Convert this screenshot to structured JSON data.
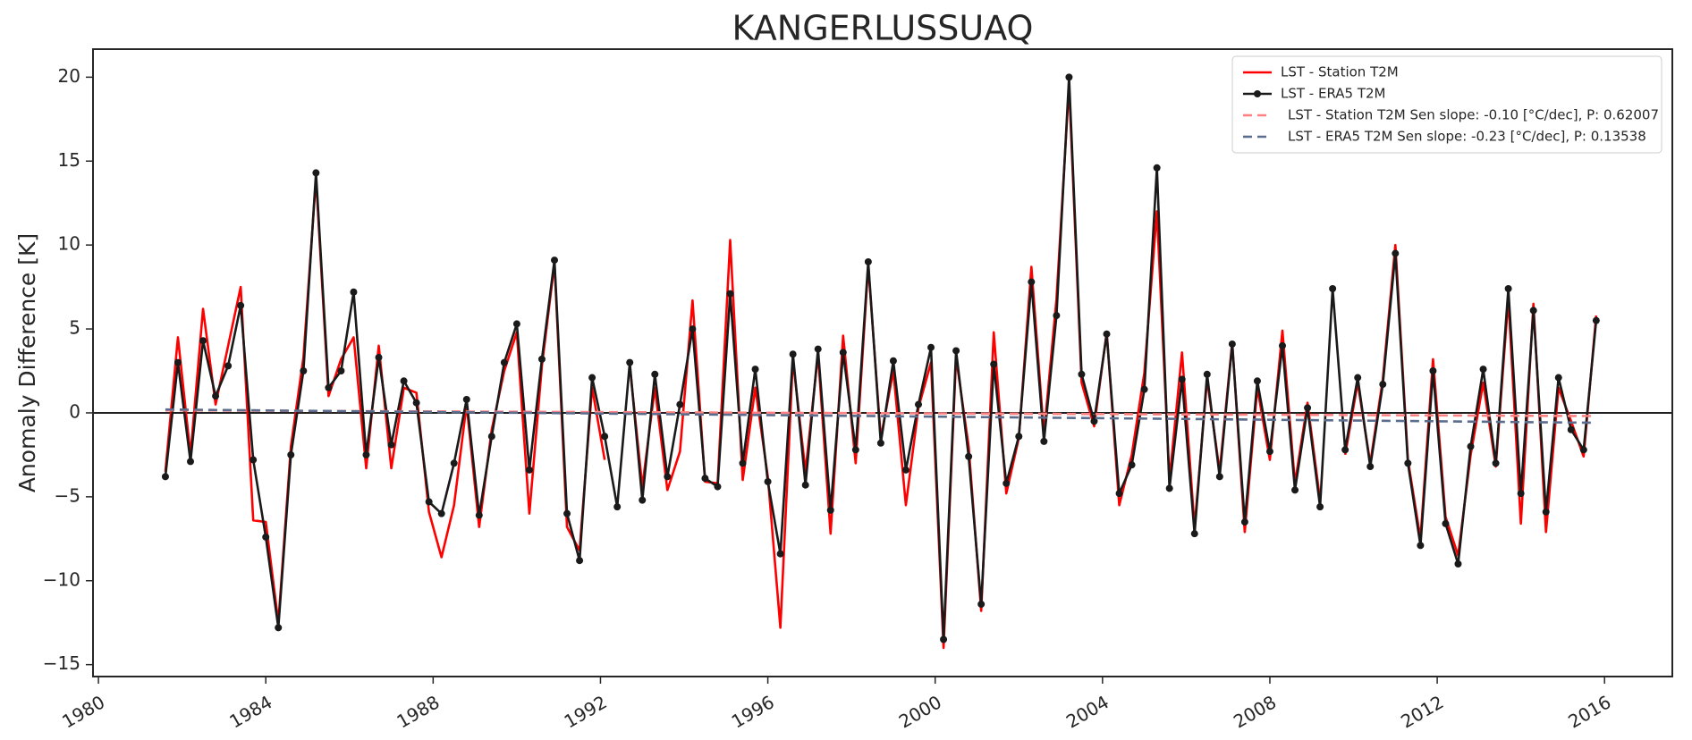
{
  "chart_data": {
    "type": "line",
    "title": "KANGERLUSSUAQ",
    "y_label": "Anomaly Difference [K]",
    "xlim": [
      1979.87,
      2017.62
    ],
    "ylim": [
      -15.71,
      21.67
    ],
    "xticks": [
      1980,
      1984,
      1988,
      1992,
      1996,
      2000,
      2004,
      2008,
      2012,
      2016
    ],
    "yticks": [
      {
        "value": -15,
        "label": "−15"
      },
      {
        "value": -10,
        "label": "−10"
      },
      {
        "value": -5,
        "label": "−5"
      },
      0,
      5,
      10,
      15,
      20
    ],
    "hline": 0,
    "legend": "upper right",
    "x": [
      1981.6,
      1981.9,
      1982.2,
      1982.5,
      1982.8,
      1983.1,
      1983.4,
      1983.7,
      1984.0,
      1984.3,
      1984.6,
      1984.9,
      1985.2,
      1985.5,
      1985.8,
      1986.1,
      1986.4,
      1986.7,
      1987.0,
      1987.3,
      1987.6,
      1987.9,
      1988.2,
      1988.5,
      1988.8,
      1989.1,
      1989.4,
      1989.7,
      1990.0,
      1990.3,
      1990.6,
      1990.9,
      1991.2,
      1991.5,
      1991.8,
      1992.1,
      1992.4,
      1992.7,
      1993.0,
      1993.3,
      1993.6,
      1993.9,
      1994.2,
      1994.5,
      1994.8,
      1995.1,
      1995.4,
      1995.7,
      1996.0,
      1996.3,
      1996.6,
      1996.9,
      1997.2,
      1997.5,
      1997.8,
      1998.1,
      1998.4,
      1998.7,
      1999.0,
      1999.3,
      1999.6,
      1999.9,
      2000.2,
      2000.5,
      2000.8,
      2001.1,
      2001.4,
      2001.7,
      2002.0,
      2002.3,
      2002.6,
      2002.9,
      2003.2,
      2003.5,
      2003.8,
      2004.1,
      2004.4,
      2004.7,
      2005.0,
      2005.3,
      2005.6,
      2005.9,
      2006.2,
      2006.5,
      2006.8,
      2007.1,
      2007.4,
      2007.7,
      2008.0,
      2008.3,
      2008.6,
      2008.9,
      2009.2,
      2009.5,
      2009.8,
      2010.1,
      2010.4,
      2010.7,
      2011.0,
      2011.3,
      2011.6,
      2011.9,
      2012.2,
      2012.5,
      2012.8,
      2013.1,
      2013.4,
      2013.7,
      2014.0,
      2014.3,
      2014.6,
      2014.9,
      2015.2,
      2015.5,
      2015.8
    ],
    "series": [
      {
        "name": "LST - Station T2M",
        "color": "#ff0000",
        "markers": false,
        "values": [
          -3.5,
          4.5,
          -2.5,
          6.2,
          0.5,
          4.0,
          7.5,
          -6.4,
          -6.5,
          -12.5,
          -2.0,
          3.3,
          14.0,
          1.0,
          3.2,
          4.5,
          -3.3,
          4.0,
          -3.3,
          1.5,
          1.2,
          -5.9,
          -8.6,
          -5.5,
          0.5,
          -6.8,
          -1.0,
          2.5,
          4.8,
          -6.0,
          2.8,
          8.9,
          -6.8,
          -8.2,
          1.5,
          -2.8,
          null,
          2.8,
          -4.4,
          1.5,
          -4.6,
          -2.3,
          6.7,
          -4.1,
          -4.2,
          10.3,
          -4.0,
          1.5,
          -3.8,
          -12.8,
          3.2,
          -3.5,
          3.5,
          -7.2,
          4.6,
          -3.0,
          8.8,
          -1.5,
          2.5,
          -5.5,
          0.3,
          3.0,
          -14.0,
          3.3,
          -2.0,
          -11.8,
          4.8,
          -4.8,
          -1.5,
          8.7,
          -1.3,
          6.8,
          19.5,
          1.8,
          -0.8,
          4.8,
          -5.5,
          -2.5,
          2.4,
          12.0,
          -4.0,
          3.6,
          -6.8,
          2.0,
          -3.5,
          4.2,
          -7.1,
          1.5,
          -2.8,
          4.9,
          -4.2,
          0.6,
          -5.2,
          null,
          -2.5,
          1.8,
          -3.0,
          2.0,
          10.0,
          -2.8,
          -7.5,
          3.2,
          -6.2,
          -8.5,
          -2.5,
          1.8,
          -3.2,
          6.8,
          -6.6,
          6.5,
          -7.1,
          1.5,
          -0.5,
          -2.6,
          5.8
        ]
      },
      {
        "name": "LST - ERA5 T2M",
        "color": "#1a1a1a",
        "markers": true,
        "values": [
          -3.8,
          3.0,
          -2.9,
          4.3,
          1.0,
          2.8,
          6.4,
          -2.8,
          -7.4,
          -12.8,
          -2.5,
          2.5,
          14.3,
          1.5,
          2.5,
          7.2,
          -2.5,
          3.3,
          -1.9,
          1.9,
          0.6,
          -5.3,
          -6.0,
          -3.0,
          0.8,
          -6.1,
          -1.4,
          3.0,
          5.3,
          -3.4,
          3.2,
          9.1,
          -6.0,
          -8.8,
          2.1,
          -1.4,
          -5.6,
          3.0,
          -5.2,
          2.3,
          -3.8,
          0.5,
          5.0,
          -3.9,
          -4.4,
          7.1,
          -3.0,
          2.6,
          -4.1,
          -8.4,
          3.5,
          -4.3,
          3.8,
          -5.8,
          3.6,
          -2.2,
          9.0,
          -1.8,
          3.1,
          -3.4,
          0.5,
          3.9,
          -13.5,
          3.7,
          -2.6,
          -11.4,
          2.9,
          -4.2,
          -1.4,
          7.8,
          -1.7,
          5.8,
          20.0,
          2.3,
          -0.5,
          4.7,
          -4.8,
          -3.1,
          1.4,
          14.6,
          -4.5,
          2.0,
          -7.2,
          2.3,
          -3.8,
          4.1,
          -6.5,
          1.9,
          -2.3,
          4.0,
          -4.6,
          0.3,
          -5.6,
          7.4,
          -2.2,
          2.1,
          -3.2,
          1.7,
          9.5,
          -3.0,
          -7.9,
          2.5,
          -6.6,
          -9.0,
          -2.0,
          2.6,
          -3.0,
          7.4,
          -4.8,
          6.1,
          -5.9,
          2.1,
          -1.0,
          -2.2,
          5.5
        ]
      }
    ],
    "trends": [
      {
        "name": "LST - Station T2M  Sen slope: -0.10 [°C/dec], P: 0.62007",
        "color": "#ff8080",
        "x": [
          1981.6,
          2015.8
        ],
        "values": [
          0.15,
          -0.19
        ]
      },
      {
        "name": "LST - ERA5 T2M Sen slope: -0.23 [°C/dec], P: 0.13538",
        "color": "#5b6d8f",
        "x": [
          1981.6,
          2015.8
        ],
        "values": [
          0.2,
          -0.59
        ]
      }
    ]
  }
}
